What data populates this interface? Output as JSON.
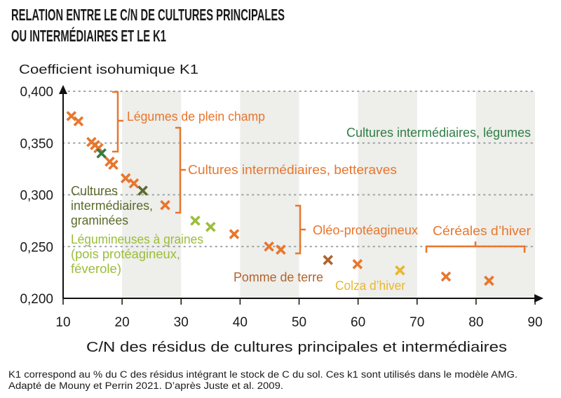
{
  "title_lines": [
    "RELATION ENTRE LE C/N DE CULTURES PRINCIPALES",
    "OU INTERMÉDIAIRES ET LE K1"
  ],
  "footer_lines": [
    "K1 correspond au % du C des résidus intégrant le stock de C du sol. Ces k1 sont utilisés dans le modèle AMG.",
    "Adapté de Mouny et Perrin 2021. D’après Juste et al. 2009."
  ],
  "colors": {
    "orange": "#E8762D",
    "veg_green": "#2F7D46",
    "grass_olive": "#5B6B2B",
    "legume_green": "#9BBD3A",
    "potato_brown": "#B0642E",
    "rapeseed_yellow": "#E9B72E",
    "band": "#EEEEEA"
  },
  "chart_data": {
    "type": "scatter",
    "xlabel": "C/N des résidus de cultures principales et intermédiaires",
    "ylabel": "Coefficient isohumique K1",
    "xlim": [
      10,
      90
    ],
    "ylim": [
      0.2,
      0.4
    ],
    "x_ticks": [
      "10",
      "20",
      "30",
      "40",
      "50",
      "60",
      "70",
      "80",
      "90"
    ],
    "y_ticks": [
      "0,200",
      "0,250",
      "0,300",
      "0,350",
      "0,400"
    ],
    "grid": "dotted horizontal at 0,250 / 0,300 / 0,350 / 0,400",
    "shaded_bands": [
      [
        20,
        30
      ],
      [
        40,
        50
      ],
      [
        60,
        70
      ],
      [
        80,
        90
      ]
    ],
    "marker": "x",
    "points": [
      {
        "x": 11.4,
        "y": 0.376,
        "group": "orange"
      },
      {
        "x": 12.6,
        "y": 0.371,
        "group": "orange"
      },
      {
        "x": 14.8,
        "y": 0.351,
        "group": "orange"
      },
      {
        "x": 15.4,
        "y": 0.348,
        "group": "orange"
      },
      {
        "x": 16.0,
        "y": 0.345,
        "group": "orange"
      },
      {
        "x": 16.5,
        "y": 0.34,
        "group": "veg_green"
      },
      {
        "x": 17.9,
        "y": 0.332,
        "group": "orange"
      },
      {
        "x": 18.5,
        "y": 0.329,
        "group": "orange"
      },
      {
        "x": 20.6,
        "y": 0.316,
        "group": "orange"
      },
      {
        "x": 22.0,
        "y": 0.311,
        "group": "orange"
      },
      {
        "x": 23.5,
        "y": 0.304,
        "group": "grass_olive"
      },
      {
        "x": 27.3,
        "y": 0.29,
        "group": "orange"
      },
      {
        "x": 32.4,
        "y": 0.275,
        "group": "legume_green"
      },
      {
        "x": 35.0,
        "y": 0.269,
        "group": "legume_green"
      },
      {
        "x": 39.0,
        "y": 0.262,
        "group": "orange"
      },
      {
        "x": 44.9,
        "y": 0.25,
        "group": "orange"
      },
      {
        "x": 46.9,
        "y": 0.247,
        "group": "orange"
      },
      {
        "x": 54.9,
        "y": 0.237,
        "group": "potato_brown"
      },
      {
        "x": 59.9,
        "y": 0.233,
        "group": "orange"
      },
      {
        "x": 67.1,
        "y": 0.227,
        "group": "rapeseed_yellow"
      },
      {
        "x": 74.9,
        "y": 0.221,
        "group": "orange"
      },
      {
        "x": 82.2,
        "y": 0.217,
        "group": "orange"
      }
    ],
    "annotations": {
      "legumes_plein_champ": "Légumes de plein champ",
      "ci_betteraves": "Cultures intermédiaires, betteraves",
      "ci_legumes": "Cultures intermédiaires, légumes",
      "ci_graminees": [
        "Cultures",
        "intermédiaires,",
        "graminées"
      ],
      "legumineuses": [
        "Légumineuses à graines",
        "(pois protéagineux,",
        "féverole)"
      ],
      "oleo": "Oléo-protéagineux",
      "cereales": "Céréales d’hiver",
      "pomme_de_terre": "Pomme de terre",
      "colza": "Colza d’hiver"
    }
  }
}
